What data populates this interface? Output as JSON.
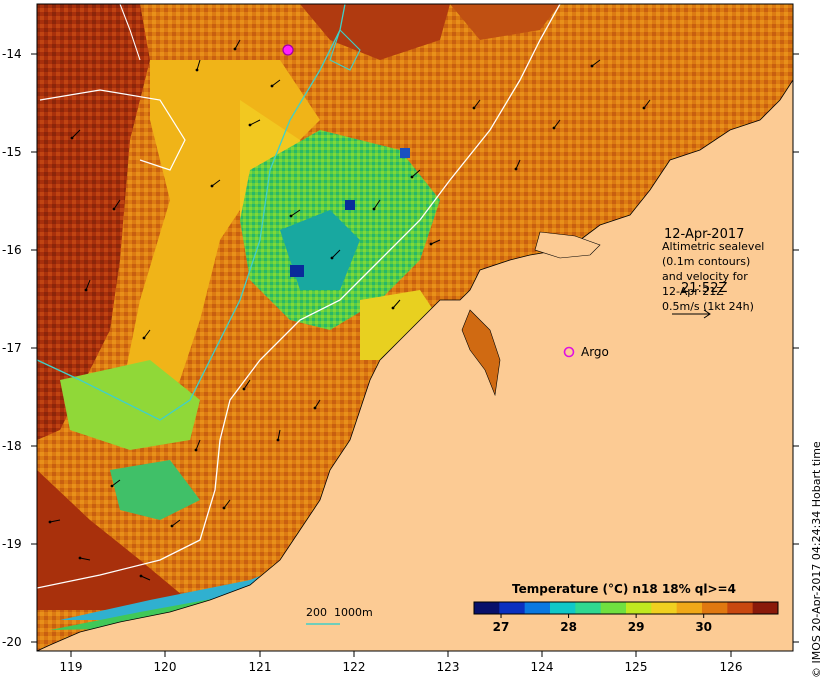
{
  "map": {
    "y_axis_ticks": [
      "-14",
      "-15",
      "-16",
      "-17",
      "-18",
      "-19",
      "-20"
    ],
    "x_axis_ticks": [
      "119",
      "120",
      "121",
      "122",
      "123",
      "124",
      "125",
      "126"
    ],
    "lat_range": [
      -20.1,
      -13.6
    ],
    "lon_range": [
      118.65,
      126.65
    ],
    "land_color": "#fccb94",
    "sst_colors": [
      "#7a1e0a",
      "#b83a10",
      "#d8700e",
      "#f0b418",
      "#e8e020",
      "#9be03a",
      "#30c860",
      "#1aa0d0",
      "#08209a"
    ]
  },
  "annotations": {
    "date_line1": "12-Apr-2017",
    "date_line2": "21:52Z",
    "altimetry_text": "Altimetric sealevel\n(0.1m contours)\nand velocity for\n12-Apr 21Z\n0.5m/s (1kt 24h)",
    "argo_label": "Argo",
    "isobath_label": "200  1000m",
    "credit": "© IMOS 20-Apr-2017 04:24:34 Hobart time"
  },
  "colorbar": {
    "title": "Temperature (°C) n18 18% ql>=4",
    "ticks": [
      "27",
      "28",
      "29",
      "30"
    ],
    "range": [
      26.6,
      31.1
    ],
    "colors": [
      "#08106a",
      "#0a30c0",
      "#0a78e0",
      "#10c8c8",
      "#30d890",
      "#70e040",
      "#c0e820",
      "#f0d020",
      "#f0a818",
      "#e07810",
      "#c84810",
      "#8a1a0a"
    ]
  }
}
